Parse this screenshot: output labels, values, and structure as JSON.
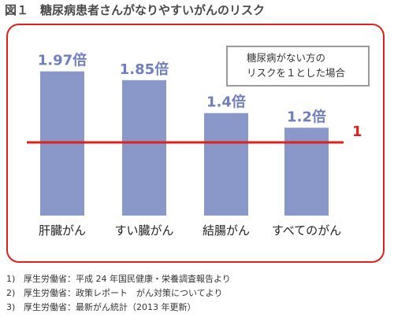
{
  "title": "図１　糖尿病患者さんがなりやすいがんのリスク",
  "note": [
    "糖尿病がない方の",
    "リスクを１とした場合"
  ],
  "reference_label": "1",
  "colors": {
    "bar": "#8a97c9",
    "bar_label": "#6f7fbf",
    "accent": "#e0201b"
  },
  "chart_data": {
    "type": "bar",
    "categories": [
      "肝臓がん",
      "すい臓がん",
      "結腸がん",
      "すべてのがん"
    ],
    "values": [
      1.97,
      1.85,
      1.4,
      1.2
    ],
    "value_labels": [
      "1.97倍",
      "1.85倍",
      "1.4倍",
      "1.2倍"
    ],
    "reference_line": 1,
    "ylim": [
      0,
      2.3
    ],
    "grid": false
  },
  "footnotes": [
    {
      "num": "1)",
      "text": "厚生労働省：平成 24 年国民健康・栄養調査報告より"
    },
    {
      "num": "2)",
      "text": "厚生労働省：政策レポート　がん対策についてより"
    },
    {
      "num": "3)",
      "text": "厚生労働省：最新がん統計（2013 年更新）"
    }
  ]
}
